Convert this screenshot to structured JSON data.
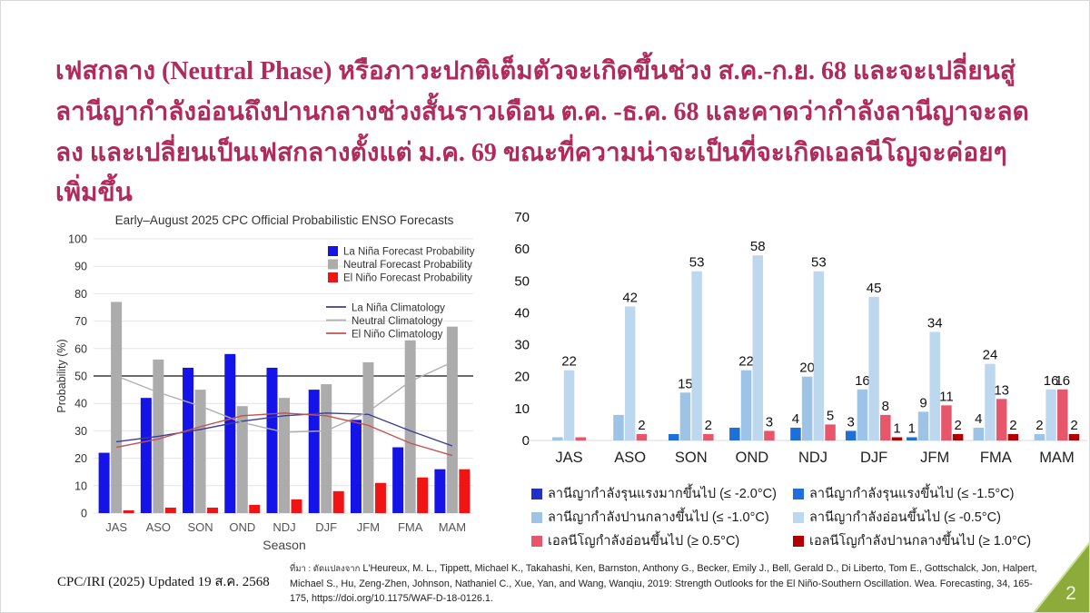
{
  "slide": {
    "title": "เฟสกลาง (Neutral Phase) หรือภาวะปกติเต็มตัวจะเกิดขึ้นช่วง ส.ค.-ก.ย. 68 และจะเปลี่ยนสู่ลานีญากำลังอ่อนถึงปานกลางช่วงสั้นราวเดือน ต.ค. -ธ.ค. 68 และคาดว่ากำลังลานีญาจะลดลง และเปลี่ยนเป็นเฟสกลางตั้งแต่ ม.ค. 69 ขณะที่ความน่าจะเป็นที่จะเกิดเอลนีโญจะค่อยๆ เพิ่มขึ้น",
    "title_color": "#B02A5B",
    "footer_left": "CPC/IRI (2025) Updated 19 ส.ค. 2568",
    "source_prefix": "ที่มา : ดัดแปลงจาก",
    "source_citation": "L'Heureux, M. L., Tippett, Michael K., Takahashi, Ken, Barnston, Anthony G., Becker, Emily J., Bell, Gerald D., Di Liberto, Tom E., Gottschalck, Jon, Halpert, Michael S., Hu, Zeng-Zhen, Johnson, Nathaniel C., Xue, Yan, and Wang, Wanqiu, 2019: Strength Outlooks for the El Niño-Southern Oscillation. Wea. Forecasting, 34, 165-175, https://doi.org/10.1175/WAF-D-18-0126.1.",
    "page_number": "2",
    "corner_color": "#8CAB3B",
    "corner_edge_color": "#6d8a2e"
  },
  "chart_data": [
    {
      "id": "cpc-forecast",
      "type": "bar",
      "title": "Early–August 2025 CPC Official Probabilistic ENSO Forecasts",
      "xlabel": "Season",
      "ylabel": "Probability (%)",
      "ylim": [
        0,
        100
      ],
      "ytick_step": 10,
      "grid": true,
      "reference_line": 50,
      "legend_position": "top-right-inside",
      "categories": [
        "JAS",
        "ASO",
        "SON",
        "OND",
        "NDJ",
        "DJF",
        "JFM",
        "FMA",
        "MAM"
      ],
      "bar_series": [
        {
          "name": "La Niña Forecast Probability",
          "color": "#1414E8",
          "values": [
            22,
            42,
            53,
            58,
            53,
            45,
            34,
            24,
            16
          ]
        },
        {
          "name": "Neutral Forecast Probability",
          "color": "#ACACAC",
          "values": [
            77,
            56,
            45,
            39,
            42,
            47,
            55,
            63,
            68
          ]
        },
        {
          "name": "El Niño Forecast Probability",
          "color": "#F01414",
          "values": [
            1,
            2,
            2,
            3,
            5,
            8,
            11,
            13,
            16
          ]
        }
      ],
      "line_series": [
        {
          "name": "La Niña Climatology",
          "color": "#3B3B9B",
          "values": [
            26,
            28,
            30.5,
            33.5,
            35.5,
            36.5,
            36,
            30,
            24.5
          ]
        },
        {
          "name": "Neutral Climatology",
          "color": "#AFAFAF",
          "values": [
            50,
            44,
            39,
            33,
            29.5,
            30,
            37,
            48,
            55
          ]
        },
        {
          "name": "El Niño Climatology",
          "color": "#C75050",
          "values": [
            24,
            27,
            31.5,
            35.5,
            36.5,
            35.5,
            32,
            25.5,
            21
          ]
        }
      ]
    },
    {
      "id": "strength-outlook",
      "type": "bar",
      "title": "",
      "xlabel": "",
      "ylabel": "",
      "ylim": [
        0,
        70
      ],
      "ytick_step": 10,
      "grid": false,
      "legend_position": "bottom",
      "categories": [
        "JAS",
        "ASO",
        "SON",
        "OND",
        "NDJ",
        "DJF",
        "JFM",
        "FMA",
        "MAM"
      ],
      "series": [
        {
          "name": "ลานีญากำลังรุนแรงมากขึ้นไป (≤ -2.0°C)",
          "color": "#2230C8",
          "values": [
            0,
            0,
            0,
            0,
            0,
            0,
            0,
            0,
            0
          ],
          "labels": [
            null,
            null,
            null,
            null,
            null,
            null,
            null,
            null,
            null
          ]
        },
        {
          "name": "ลานีญากำลังรุนแรงขึ้นไป (≤ -1.5°C)",
          "color": "#1E6FD8",
          "values": [
            0,
            0,
            2,
            4,
            4,
            3,
            1,
            0,
            0
          ],
          "labels": [
            null,
            null,
            null,
            null,
            "4",
            "3",
            "1",
            null,
            null
          ]
        },
        {
          "name": "ลานีญากำลังปานกลางขึ้นไป (≤ -1.0°C)",
          "color": "#9DC3E6",
          "values": [
            1,
            8,
            15,
            22,
            20,
            16,
            9,
            4,
            2
          ],
          "labels": [
            null,
            null,
            "15",
            "22",
            "20",
            "16",
            "9",
            "4",
            "2"
          ]
        },
        {
          "name": "ลานีญากำลังอ่อนขึ้นไป (≤ -0.5°C)",
          "color": "#BDD7EE",
          "values": [
            22,
            42,
            53,
            58,
            53,
            45,
            34,
            24,
            16
          ],
          "labels": [
            "22",
            "42",
            "53",
            "58",
            "53",
            "45",
            "34",
            "24",
            "16"
          ]
        },
        {
          "name": "เอลนีโญกำลังอ่อนขึ้นไป (≥ 0.5°C)",
          "color": "#E8566B",
          "values": [
            1,
            2,
            2,
            3,
            5,
            8,
            11,
            13,
            16
          ],
          "labels": [
            null,
            "2",
            "2",
            "3",
            "5",
            "8",
            "11",
            "13",
            "16"
          ]
        },
        {
          "name": "เอลนีโญกำลังปานกลางขึ้นไป (≥ 1.0°C)",
          "color": "#B00000",
          "values": [
            0,
            0,
            0,
            0,
            0,
            1,
            2,
            2,
            2
          ],
          "labels": [
            null,
            null,
            null,
            null,
            null,
            "1",
            "2",
            "2",
            "2"
          ]
        }
      ]
    }
  ]
}
